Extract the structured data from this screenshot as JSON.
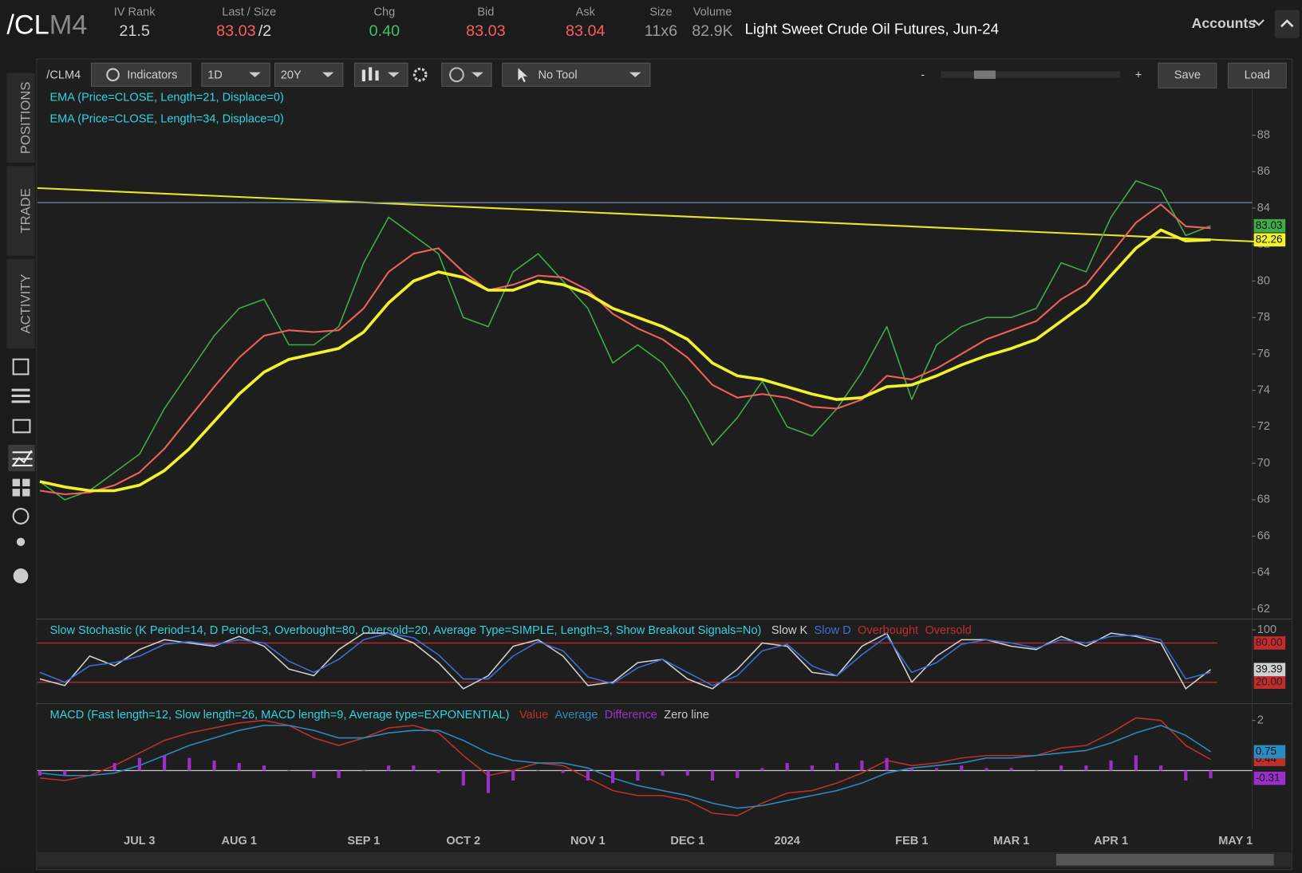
{
  "header": {
    "symbol": "/CL",
    "symbol_suffix": "M4",
    "fields": [
      {
        "label": "IV Rank",
        "value": "21.5",
        "color": "#cfcfcf"
      },
      {
        "label": "Last / Size",
        "value": "83.03",
        "extra": "/2",
        "color": "#ff5b5b"
      },
      {
        "label": "Chg",
        "value": "0.40",
        "color": "#3cc26b"
      },
      {
        "label": "Bid",
        "value": "83.03",
        "color": "#ff5b5b"
      },
      {
        "label": "Ask",
        "value": "83.04",
        "color": "#ff5b5b"
      },
      {
        "label": "Size",
        "value": "11x6",
        "color": "#9a9a9a"
      },
      {
        "label": "Volume",
        "value": "82.9K",
        "color": "#9a9a9a"
      }
    ],
    "description": "Light Sweet Crude Oil Futures, Jun-24",
    "accounts": "Accounts"
  },
  "toolbar": {
    "symbol": "/CLM4",
    "indicators": "Indicators",
    "period": "1D",
    "range": "20Y",
    "tool": "No Tool",
    "zoom_out": "-",
    "zoom_in": "+",
    "save": "Save",
    "load": "Load"
  },
  "sidebar": {
    "tabs": [
      "POSITIONS",
      "TRADE",
      "ACTIVITY"
    ]
  },
  "chart_data": [
    {
      "type": "line",
      "categories": [
        null,
        null,
        null,
        null,
        "JUL 3",
        null,
        null,
        null,
        "AUG 1",
        null,
        null,
        null,
        null,
        "SEP 1",
        null,
        null,
        null,
        "OCT 2",
        null,
        null,
        null,
        null,
        "NOV 1",
        null,
        null,
        null,
        "DEC 1",
        null,
        null,
        null,
        "2024",
        null,
        null,
        null,
        null,
        "FEB 1",
        null,
        null,
        null,
        "MAR 1",
        null,
        null,
        null,
        "APR 1",
        null,
        null,
        null,
        null,
        "MAY 1"
      ],
      "series": [
        {
          "color": "#3fae49",
          "width": 1.5,
          "show_last": true,
          "values": [
            69,
            68,
            68.5,
            69.5,
            70.5,
            73,
            75,
            77,
            78.5,
            79,
            76.5,
            76.5,
            77.5,
            81,
            83.5,
            82.5,
            81.5,
            78,
            77.5,
            80.5,
            81.5,
            80,
            78.5,
            75.5,
            76.5,
            75.5,
            73.5,
            71,
            72.5,
            74.5,
            72,
            71.5,
            73,
            75,
            77.5,
            73.5,
            76.5,
            77.5,
            78,
            78,
            78.5,
            81,
            80.5,
            83.5,
            85.5,
            85,
            82.5,
            83.03,
            null
          ]
        },
        {
          "name": "EMA (Price=CLOSE, Length=21, Displace=0)",
          "color": "#f0605a",
          "width": 2,
          "values": [
            68.5,
            68.3,
            68.4,
            68.8,
            69.5,
            70.8,
            72.5,
            74.2,
            75.8,
            77,
            77.3,
            77.2,
            77.3,
            78.5,
            80.5,
            81.5,
            81.8,
            80.5,
            79.5,
            79.8,
            80.3,
            80.2,
            79.5,
            78.2,
            77.4,
            76.8,
            75.8,
            74.3,
            73.6,
            73.8,
            73.6,
            73.1,
            73,
            73.5,
            74.8,
            74.6,
            75.2,
            76,
            76.8,
            77.3,
            77.8,
            79,
            79.8,
            81.5,
            83.2,
            84.2,
            83,
            82.9,
            null
          ]
        },
        {
          "name": "EMA (Price=CLOSE, Length=34, Displace=0)",
          "color": "#f2f22a",
          "width": 3.5,
          "show_last": true,
          "values": [
            69,
            68.7,
            68.5,
            68.5,
            68.8,
            69.6,
            70.8,
            72.3,
            73.8,
            75,
            75.7,
            76,
            76.3,
            77.2,
            78.8,
            80,
            80.5,
            80.2,
            79.5,
            79.5,
            80,
            79.8,
            79.3,
            78.5,
            78,
            77.5,
            76.8,
            75.5,
            74.8,
            74.6,
            74.2,
            73.8,
            73.5,
            73.6,
            74.2,
            74.3,
            74.8,
            75.4,
            75.9,
            76.3,
            76.8,
            77.8,
            78.8,
            80.3,
            81.8,
            82.8,
            82.2,
            82.26,
            null
          ]
        }
      ],
      "hlines": [
        {
          "value": 84.3,
          "color": "#6f8aa8"
        }
      ],
      "trendline": {
        "values": [
          85.1,
          82.1
        ],
        "color": "#e6e62a"
      },
      "ylim": [
        61.5,
        90.5
      ],
      "yticks": [
        62,
        64,
        66,
        68,
        70,
        72,
        74,
        76,
        78,
        80,
        82,
        84,
        86,
        88
      ]
    },
    {
      "type": "line",
      "title": "Slow Stochastic (K Period=14, D Period=3, Overbought=80, Oversold=20, Average Type=SIMPLE, Length=3, Show Breakout Signals=No)",
      "series": [
        {
          "name": "Slow K",
          "color": "#d0d0d0",
          "show_last": true,
          "values": [
            25,
            15,
            60,
            45,
            70,
            85,
            80,
            75,
            90,
            75,
            40,
            30,
            70,
            95,
            95,
            80,
            50,
            10,
            30,
            75,
            85,
            60,
            15,
            20,
            50,
            55,
            25,
            10,
            40,
            80,
            75,
            35,
            30,
            75,
            95,
            20,
            60,
            85,
            85,
            75,
            70,
            90,
            75,
            95,
            90,
            80,
            10,
            39.39,
            null
          ]
        },
        {
          "name": "Slow D",
          "color": "#3a6fd8",
          "values": [
            35,
            20,
            45,
            50,
            60,
            78,
            82,
            77,
            85,
            80,
            52,
            35,
            55,
            85,
            95,
            88,
            62,
            25,
            25,
            60,
            82,
            68,
            28,
            18,
            42,
            55,
            35,
            15,
            30,
            68,
            78,
            45,
            30,
            62,
            90,
            35,
            50,
            78,
            85,
            80,
            72,
            85,
            80,
            90,
            92,
            85,
            25,
            35,
            null
          ]
        }
      ],
      "hlines": [
        {
          "name": "Overbought",
          "value": 80,
          "label": "80.00",
          "color": "#c42b2b"
        },
        {
          "name": "Oversold",
          "value": 20,
          "label": "20.00",
          "color": "#c42b2b"
        }
      ],
      "ylim": [
        -9,
        114
      ],
      "yticks": [
        100
      ]
    },
    {
      "type": "line",
      "title": "MACD (Fast length=12, Slow length=26, MACD length=9, Average type=EXPONENTIAL)",
      "series": [
        {
          "name": "Value",
          "color": "#c0302a",
          "show_last": true,
          "values": [
            -0.3,
            -0.4,
            -0.2,
            0.2,
            0.7,
            1.2,
            1.5,
            1.7,
            1.9,
            2.0,
            1.8,
            1.3,
            1.0,
            1.3,
            1.7,
            1.8,
            1.5,
            0.6,
            -0.2,
            0.0,
            0.3,
            0.2,
            -0.3,
            -0.8,
            -1.0,
            -1.0,
            -1.2,
            -1.7,
            -1.8,
            -1.3,
            -0.9,
            -0.8,
            -0.5,
            -0.1,
            0.4,
            0.2,
            0.3,
            0.5,
            0.6,
            0.6,
            0.6,
            0.9,
            1.0,
            1.5,
            2.1,
            2.0,
            1.0,
            0.44,
            null
          ]
        },
        {
          "name": "Average",
          "color": "#2a8bc0",
          "show_last": true,
          "values": [
            -0.1,
            -0.2,
            -0.2,
            -0.1,
            0.2,
            0.6,
            1.0,
            1.3,
            1.6,
            1.8,
            1.8,
            1.6,
            1.3,
            1.3,
            1.5,
            1.6,
            1.6,
            1.2,
            0.7,
            0.4,
            0.3,
            0.3,
            0.1,
            -0.3,
            -0.6,
            -0.8,
            -1.0,
            -1.3,
            -1.5,
            -1.4,
            -1.2,
            -1.0,
            -0.8,
            -0.5,
            -0.1,
            0.1,
            0.2,
            0.3,
            0.5,
            0.5,
            0.6,
            0.7,
            0.8,
            1.1,
            1.5,
            1.8,
            1.4,
            0.75,
            null
          ]
        },
        {
          "name": "Difference",
          "type": "bar",
          "color": "#9b2fc9",
          "show_last": true,
          "values": [
            -0.2,
            -0.2,
            0,
            0.3,
            0.5,
            0.6,
            0.5,
            0.4,
            0.3,
            0.2,
            0,
            -0.3,
            -0.3,
            0,
            0.2,
            0.2,
            -0.1,
            -0.6,
            -0.9,
            -0.4,
            0,
            -0.1,
            -0.4,
            -0.5,
            -0.4,
            -0.2,
            -0.2,
            -0.4,
            -0.3,
            0.1,
            0.3,
            0.2,
            0.3,
            0.4,
            0.5,
            0.1,
            0.1,
            0.2,
            0.1,
            0.1,
            0,
            0.2,
            0.2,
            0.4,
            0.6,
            0.2,
            -0.4,
            -0.31,
            null
          ]
        }
      ],
      "hlines": [
        {
          "name": "Zero line",
          "value": 0,
          "color": "#c8c8c8"
        }
      ],
      "ylim": [
        -2.3,
        2.6
      ],
      "yticks": [
        2
      ]
    }
  ]
}
